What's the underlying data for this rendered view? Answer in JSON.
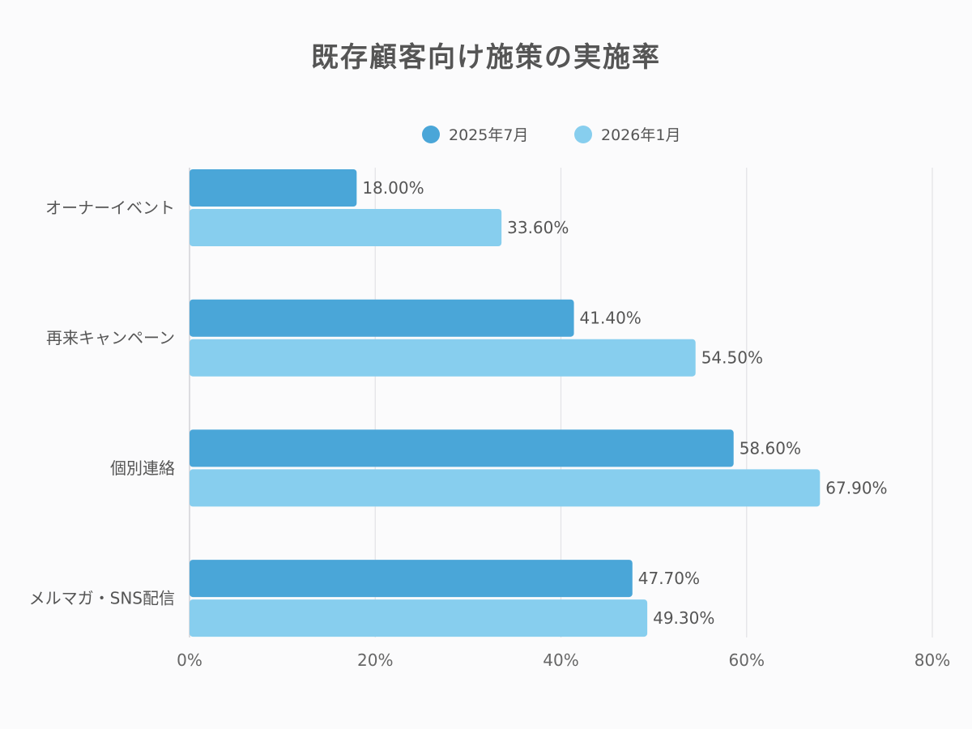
{
  "chart_data": {
    "type": "bar",
    "orientation": "horizontal",
    "title": "既存顧客向け施策の実施率",
    "categories": [
      "オーナーイベント",
      "再来キャンペーン",
      "個別連絡",
      "メルマガ・SNS配信"
    ],
    "series": [
      {
        "name": "2025年7月",
        "color": "#4aa6d8",
        "values": [
          18.0,
          41.4,
          58.6,
          47.7
        ],
        "labels": [
          "18.00%",
          "41.40%",
          "58.60%",
          "47.70%"
        ]
      },
      {
        "name": "2026年1月",
        "color": "#87ceee",
        "values": [
          33.6,
          54.5,
          67.9,
          49.3
        ],
        "labels": [
          "33.60%",
          "54.50%",
          "67.90%",
          "49.30%"
        ]
      }
    ],
    "xlim": [
      0,
      80
    ],
    "xticks": [
      0,
      20,
      40,
      60,
      80
    ],
    "xtick_labels": [
      "0%",
      "20%",
      "40%",
      "60%",
      "80%"
    ],
    "grid": true,
    "legend_position": "top-center"
  }
}
